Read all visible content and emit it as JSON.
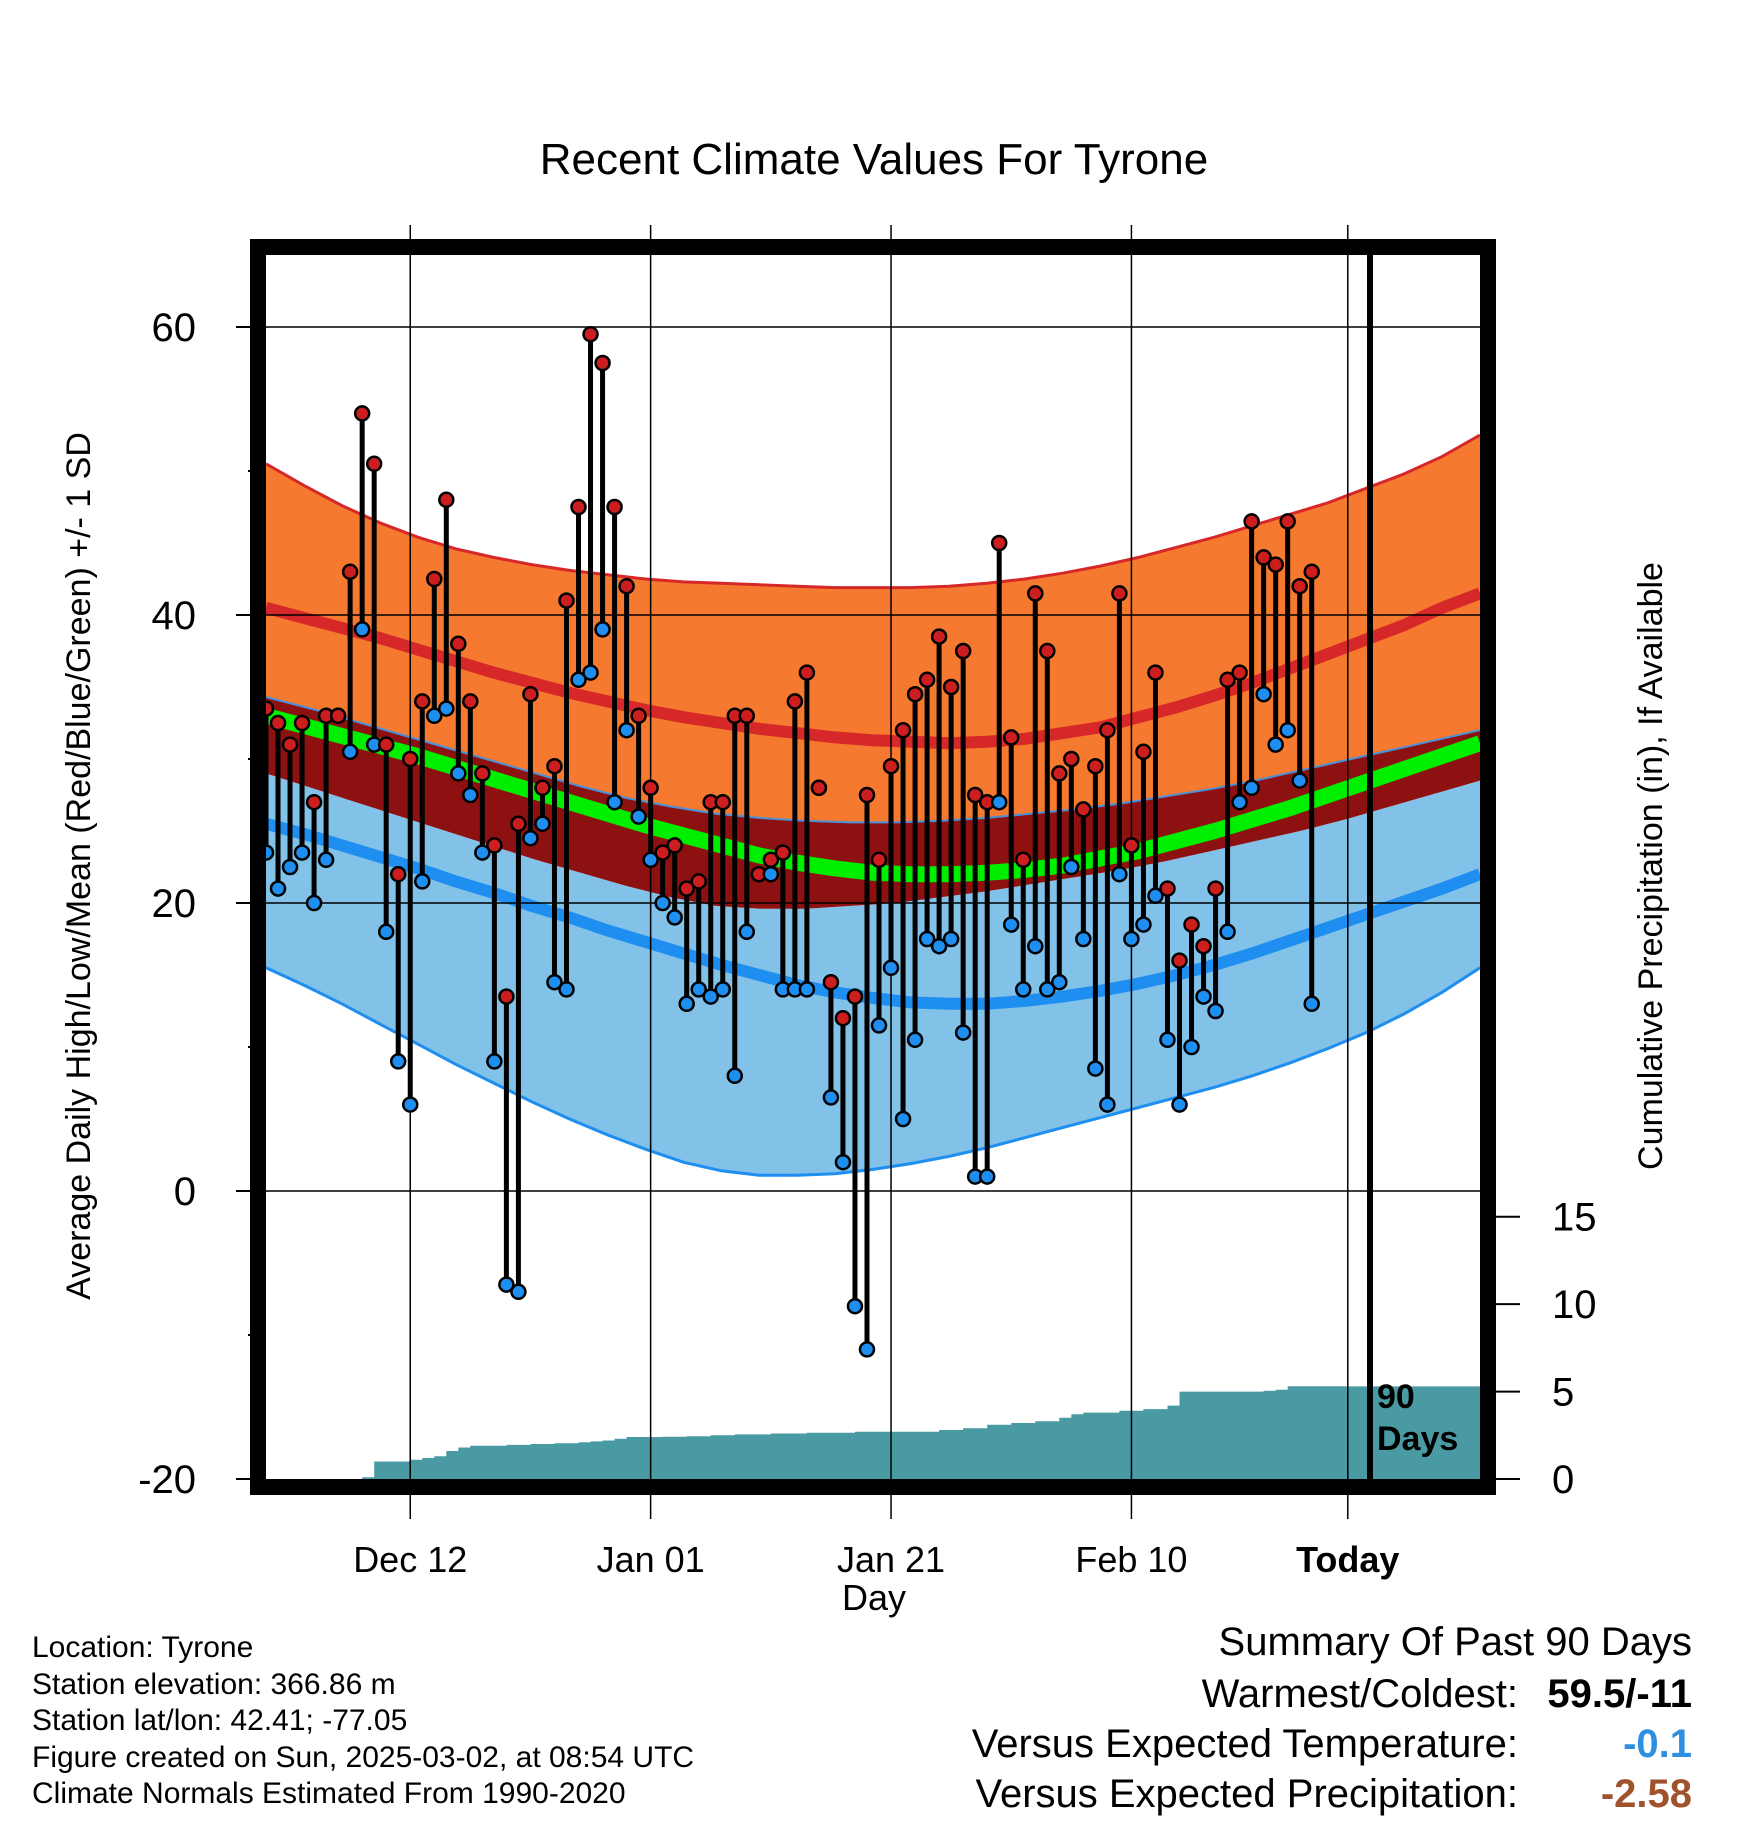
{
  "chart_data": {
    "type": "line",
    "title": "Recent Climate Values For Tyrone",
    "xlabel": "Day",
    "ylabel": "Average Daily High/Low/Mean (Red/Blue/Green) +/- 1 SD",
    "y2label": "Cumulative Precipitation (in), If Available",
    "ylim": [
      -20,
      65
    ],
    "y2lim": [
      0,
      70
    ],
    "yticks": [
      "60",
      "40",
      "20",
      "0",
      "-20"
    ],
    "y2ticks": [
      "15",
      "10",
      "5",
      "0"
    ],
    "xticks": [
      "Dec 12",
      "Jan 01",
      "Jan 21",
      "Feb 10",
      "Today"
    ],
    "x_range_days": [
      1,
      102
    ],
    "today_day": 91,
    "period_label_line1": "90",
    "period_label_line2": "Days",
    "grid": true,
    "days": [
      1,
      2,
      3,
      4,
      5,
      6,
      7,
      8,
      9,
      10,
      11,
      12,
      13,
      14,
      15,
      16,
      17,
      18,
      19,
      20,
      21,
      22,
      23,
      24,
      25,
      26,
      27,
      28,
      29,
      30,
      31,
      32,
      33,
      34,
      35,
      36,
      37,
      38,
      39,
      40,
      41,
      42,
      43,
      44,
      45,
      46,
      47,
      48,
      49,
      50,
      51,
      52,
      53,
      54,
      55,
      56,
      57,
      58,
      59,
      60,
      61,
      62,
      63,
      64,
      65,
      66,
      67,
      68,
      69,
      70,
      71,
      72,
      73,
      74,
      75,
      76,
      77,
      78,
      79,
      80,
      81,
      82,
      83,
      84,
      85,
      86,
      87,
      88,
      89,
      90
    ],
    "daily_high": [
      33.5,
      32.5,
      31,
      32.5,
      27,
      33,
      33,
      43,
      54,
      50.5,
      31,
      22,
      30,
      34,
      42.5,
      48,
      38,
      34,
      29,
      24,
      13.5,
      25.5,
      34.5,
      28,
      29.5,
      41,
      47.5,
      59.5,
      57.5,
      47.5,
      42,
      33,
      28,
      23.5,
      24,
      21,
      21.5,
      27,
      27,
      33,
      33,
      22,
      23,
      23.5,
      34,
      36,
      28,
      14.5,
      12,
      13.5,
      27.5,
      23,
      29.5,
      32,
      34.5,
      35.5,
      38.5,
      35,
      37.5,
      27.5,
      27,
      45,
      31.5,
      23,
      41.5,
      37.5,
      29,
      30,
      26.5,
      29.5,
      32,
      41.5,
      24,
      30.5,
      36,
      21,
      16,
      18.5,
      17,
      21,
      35.5,
      36,
      46.5,
      44,
      43.5,
      46.5,
      42,
      43,
      null,
      null
    ],
    "daily_low": [
      23.5,
      21,
      22.5,
      23.5,
      20,
      23,
      33,
      30.5,
      39,
      31,
      18,
      9,
      6,
      21.5,
      33,
      33.5,
      29,
      27.5,
      23.5,
      9,
      -6.5,
      -7,
      24.5,
      25.5,
      14.5,
      14,
      35.5,
      36,
      39,
      27,
      32,
      26,
      23,
      20,
      19,
      13,
      14,
      13.5,
      14,
      8,
      18,
      22,
      22,
      14,
      14,
      14,
      28,
      6.5,
      2,
      -8,
      -11,
      11.5,
      15.5,
      5,
      10.5,
      17.5,
      17,
      17.5,
      11,
      1,
      1,
      27,
      18.5,
      14,
      17,
      14,
      14.5,
      22.5,
      17.5,
      8.5,
      6,
      22,
      17.5,
      18.5,
      20.5,
      10.5,
      6,
      10,
      13.5,
      12.5,
      18,
      27,
      28,
      34.5,
      31,
      32,
      28.5,
      13,
      null,
      null
    ],
    "normal_high": [
      40.5,
      39.8,
      39.1,
      38.4,
      37.6,
      36.8,
      36.0,
      35.3,
      34.6,
      34.0,
      33.4,
      32.9,
      32.5,
      32.1,
      31.8,
      31.5,
      31.3,
      31.2,
      31.1,
      31.2,
      31.4,
      31.8,
      32.2,
      32.9,
      33.6,
      34.4,
      35.3,
      36.3,
      37.3,
      38.3,
      39.3,
      40.5,
      41.5
    ],
    "normal_low": [
      25.5,
      24.8,
      24.0,
      23.2,
      22.4,
      21.5,
      20.7,
      19.8,
      19.0,
      18.1,
      17.3,
      16.5,
      15.7,
      15.0,
      14.3,
      13.8,
      13.4,
      13.1,
      13.0,
      13.0,
      13.2,
      13.5,
      13.9,
      14.4,
      15.0,
      15.7,
      16.5,
      17.4,
      18.3,
      19.2,
      20.1,
      21.0,
      22.0
    ],
    "normal_mean": [
      33.0,
      32.3,
      31.6,
      30.9,
      30.2,
      29.4,
      28.6,
      27.8,
      27.0,
      26.2,
      25.4,
      24.7,
      24.0,
      23.3,
      22.8,
      22.4,
      22.1,
      22.0,
      22.0,
      22.1,
      22.3,
      22.6,
      23.1,
      23.6,
      24.3,
      25.0,
      25.8,
      26.6,
      27.5,
      28.4,
      29.3,
      30.2,
      31.1
    ],
    "high_plus_sd": [
      50.5,
      49.0,
      47.6,
      46.4,
      45.4,
      44.6,
      44.0,
      43.5,
      43.1,
      42.8,
      42.5,
      42.3,
      42.2,
      42.1,
      42.0,
      41.9,
      41.9,
      41.9,
      42.0,
      42.2,
      42.5,
      42.9,
      43.4,
      44.0,
      44.7,
      45.4,
      46.2,
      47.0,
      47.8,
      48.8,
      49.8,
      51.0,
      52.5
    ],
    "low_minus_sd": [
      15.5,
      14.3,
      13.0,
      11.6,
      10.2,
      8.8,
      7.5,
      6.2,
      5.0,
      3.9,
      2.9,
      2.0,
      1.4,
      1.1,
      1.1,
      1.2,
      1.5,
      1.9,
      2.4,
      3.0,
      3.7,
      4.4,
      5.1,
      5.8,
      6.5,
      7.2,
      8.0,
      8.9,
      9.9,
      11.0,
      12.3,
      13.8,
      15.5
    ],
    "mean_band_upper": [
      34.3,
      33.5,
      32.6,
      31.7,
      30.8,
      29.9,
      29.0,
      28.1,
      27.3,
      26.7,
      26.2,
      25.9,
      25.7,
      25.6,
      25.6,
      25.7,
      25.9,
      26.2,
      26.5,
      26.9,
      27.4,
      27.9,
      28.5,
      29.2,
      29.9,
      30.6,
      31.3,
      32.0
    ],
    "mean_band_lower": [
      29.0,
      28.0,
      27.0,
      26.0,
      25.0,
      24.0,
      23.0,
      22.1,
      21.2,
      20.4,
      19.8,
      19.6,
      19.6,
      19.8,
      20.0,
      20.4,
      20.8,
      21.3,
      21.8,
      22.3,
      22.9,
      23.6,
      24.3,
      25.0,
      25.8,
      26.7,
      27.6,
      28.5
    ],
    "cumulative_precip": [
      0,
      0,
      0,
      0,
      0,
      0,
      0,
      0,
      0.1,
      1,
      1,
      1,
      1.1,
      1.2,
      1.3,
      1.6,
      1.8,
      1.9,
      1.9,
      1.9,
      1.95,
      1.95,
      2.0,
      2.0,
      2.05,
      2.05,
      2.1,
      2.15,
      2.2,
      2.3,
      2.4,
      2.4,
      2.4,
      2.42,
      2.42,
      2.45,
      2.45,
      2.5,
      2.5,
      2.55,
      2.55,
      2.55,
      2.6,
      2.6,
      2.6,
      2.65,
      2.65,
      2.65,
      2.65,
      2.7,
      2.7,
      2.7,
      2.7,
      2.7,
      2.7,
      2.7,
      2.8,
      2.8,
      2.9,
      2.9,
      3.1,
      3.1,
      3.2,
      3.2,
      3.3,
      3.3,
      3.5,
      3.7,
      3.8,
      3.8,
      3.8,
      3.9,
      3.9,
      4.0,
      4.0,
      4.2,
      5.0,
      5.0,
      5.0,
      5.0,
      5.0,
      5.0,
      5.0,
      5.05,
      5.1,
      5.3,
      5.3,
      5.3,
      5.3,
      5.3
    ]
  },
  "info": {
    "location": "Location: Tyrone",
    "elevation": "Station elevation: 366.86 m",
    "latlon": "Station lat/lon: 42.41; -77.05",
    "created": "Figure created on Sun, 2025-03-02, at 08:54 UTC",
    "normals": "Climate Normals Estimated From 1990-2020"
  },
  "summary": {
    "heading": "Summary Of Past 90 Days",
    "warmest_coldest_label": "Warmest/Coldest:",
    "warmest_coldest_value": "59.5/-11",
    "temp_label": "Versus Expected Temperature:",
    "temp_value": "-0.1",
    "precip_label": "Versus Expected Precipitation:",
    "precip_value": "-2.58",
    "colors": {
      "temp": "#2f8fe0",
      "precip": "#a0522d"
    }
  },
  "colors": {
    "high_band": "#f57a2f",
    "high_line": "#d62828",
    "mean_band": "#8e1111",
    "mean_line": "#00ee00",
    "low_band": "#82c1e8",
    "low_line": "#1e8ef0",
    "precip": "#4a9aa3",
    "high_dot": "#cc1e1e",
    "low_dot": "#1e8ef0"
  }
}
